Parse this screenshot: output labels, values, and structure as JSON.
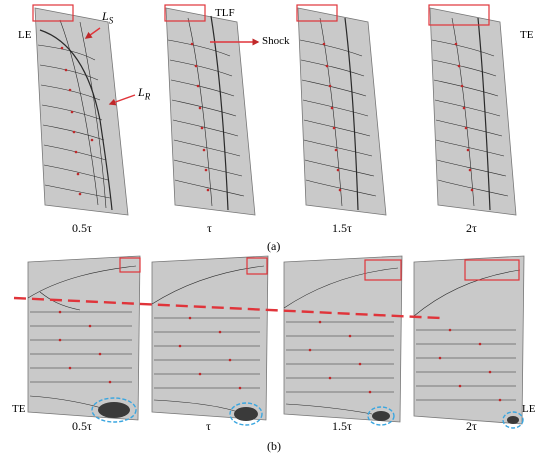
{
  "figure": {
    "panel_a": {
      "caption": "(a)",
      "time_labels": [
        "0.5τ",
        "τ",
        "1.5τ",
        "2τ"
      ],
      "annotations": {
        "le": "LE",
        "ls": "L_S",
        "lr": "L_R",
        "tlf": "TLF",
        "shock": "Shock",
        "te": "TE"
      }
    },
    "panel_b": {
      "caption": "(b)",
      "time_labels": [
        "0.5τ",
        "τ",
        "1.5τ",
        "2τ"
      ],
      "annotations": {
        "te": "TE",
        "le": "LE"
      }
    },
    "colors": {
      "surface": "#c9c9c9",
      "streamline": "#2a2a2a",
      "arrow": "#c0282a",
      "highlight_box": "#e0343a",
      "trace_line": "#e0343a",
      "vortex_ellipse": "#3aa6e0"
    }
  }
}
